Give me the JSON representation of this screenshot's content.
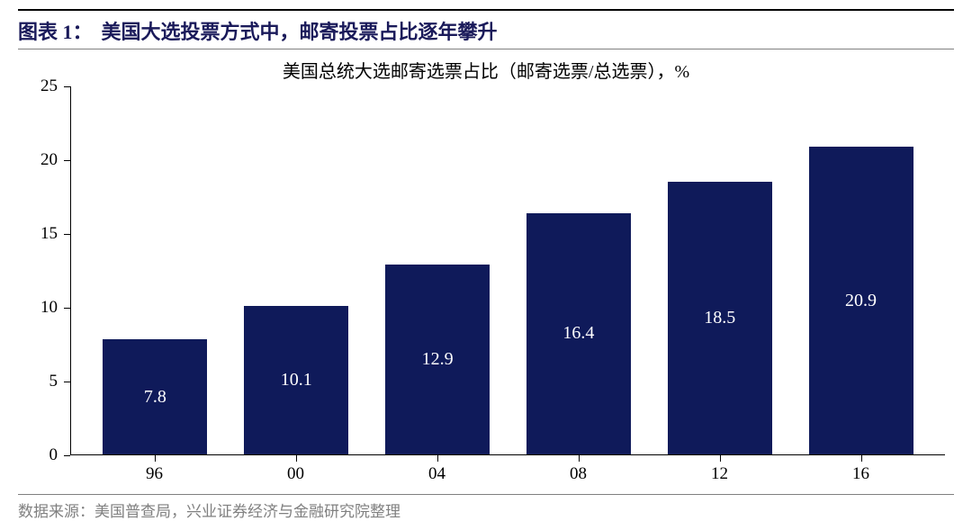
{
  "header": {
    "label": "图表 1：",
    "title": "美国大选投票方式中，邮寄投票占比逐年攀升"
  },
  "chart": {
    "type": "bar",
    "subtitle": "美国总统大选邮寄选票占比（邮寄选票/总选票），%",
    "categories": [
      "96",
      "00",
      "04",
      "08",
      "12",
      "16"
    ],
    "values": [
      7.8,
      10.1,
      12.9,
      16.4,
      18.5,
      20.9
    ],
    "value_labels": [
      "7.8",
      "10.1",
      "12.9",
      "16.4",
      "18.5",
      "20.9"
    ],
    "bar_color": "#0f1a5a",
    "value_label_color": "#ffffff",
    "value_label_fontsize": 20,
    "ylim": [
      0,
      25
    ],
    "ytick_step": 5,
    "y_ticks": [
      0,
      5,
      10,
      15,
      20,
      25
    ],
    "axis_color": "#000000",
    "tick_fontsize": 19,
    "subtitle_fontsize": 20,
    "bar_width_ratio": 0.74,
    "background_color": "#ffffff"
  },
  "source": {
    "label": "数据来源：",
    "text": "美国普查局，兴业证券经济与金融研究院整理"
  },
  "colors": {
    "title_color": "#1a1a5a",
    "divider_color": "#808080",
    "source_color": "#808080"
  }
}
